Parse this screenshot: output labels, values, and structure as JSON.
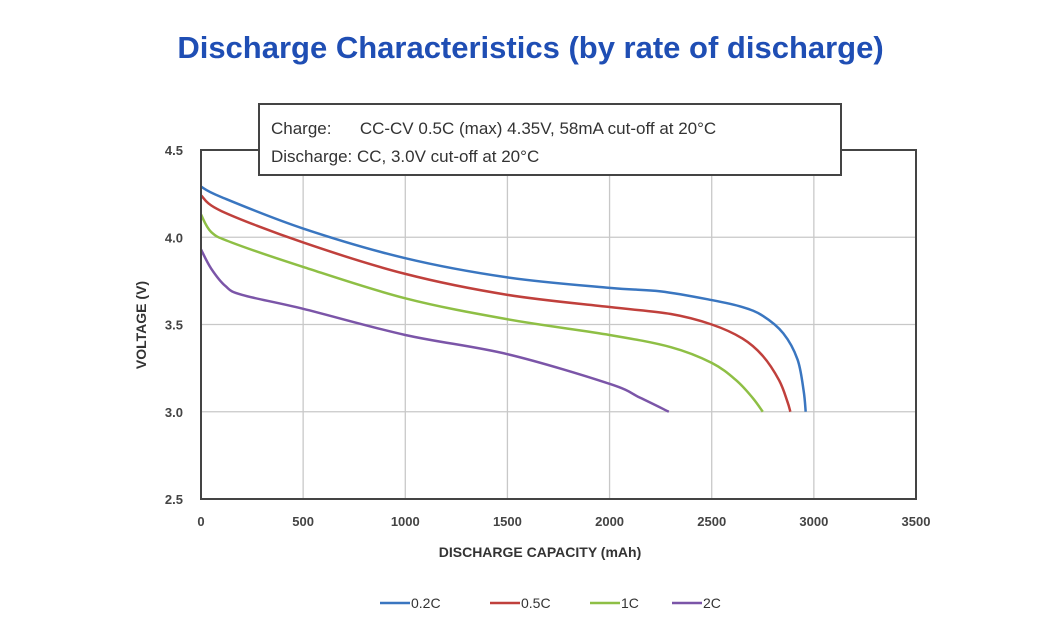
{
  "chart_data": {
    "type": "line",
    "title": "Discharge Characteristics (by rate of discharge)",
    "xlabel": "DISCHARGE CAPACITY (mAh)",
    "ylabel": "VOLTAGE (V)",
    "xlim": [
      0,
      3500
    ],
    "ylim": [
      2.5,
      4.5
    ],
    "xticks": [
      "0",
      "500",
      "1000",
      "1500",
      "2000",
      "2500",
      "3000",
      "3500"
    ],
    "yticks": [
      "2.5",
      "3.0",
      "3.5",
      "4.0",
      "4.5"
    ],
    "grid": true,
    "legend_position": "bottom",
    "annotation": [
      "Charge:      CC-CV 0.5C (max) 4.35V, 58mA cut-off at 20°C",
      "Discharge: CC, 3.0V cut-off at 20°C"
    ],
    "series": [
      {
        "name": "0.2C",
        "color": "#3a76c0",
        "x": [
          0,
          100,
          500,
          1000,
          1500,
          2000,
          2250,
          2500,
          2650,
          2750,
          2850,
          2920,
          2950,
          2960
        ],
        "y": [
          4.29,
          4.23,
          4.05,
          3.88,
          3.77,
          3.71,
          3.69,
          3.64,
          3.6,
          3.55,
          3.45,
          3.3,
          3.12,
          3.0
        ]
      },
      {
        "name": "0.5C",
        "color": "#c0403c",
        "x": [
          0,
          100,
          500,
          1000,
          1500,
          2000,
          2300,
          2500,
          2650,
          2750,
          2830,
          2870,
          2885
        ],
        "y": [
          4.24,
          4.15,
          3.97,
          3.79,
          3.67,
          3.6,
          3.56,
          3.5,
          3.42,
          3.32,
          3.18,
          3.06,
          3.0
        ]
      },
      {
        "name": "1C",
        "color": "#8ebf45",
        "x": [
          0,
          50,
          150,
          500,
          1000,
          1500,
          2000,
          2300,
          2500,
          2620,
          2700,
          2750
        ],
        "y": [
          4.13,
          4.03,
          3.97,
          3.83,
          3.65,
          3.53,
          3.44,
          3.37,
          3.28,
          3.18,
          3.08,
          3.0
        ]
      },
      {
        "name": "2C",
        "color": "#7b55a8",
        "x": [
          0,
          50,
          120,
          200,
          500,
          1000,
          1500,
          2000,
          2150,
          2290
        ],
        "y": [
          3.93,
          3.82,
          3.72,
          3.67,
          3.59,
          3.44,
          3.33,
          3.16,
          3.08,
          3.0
        ]
      }
    ]
  }
}
